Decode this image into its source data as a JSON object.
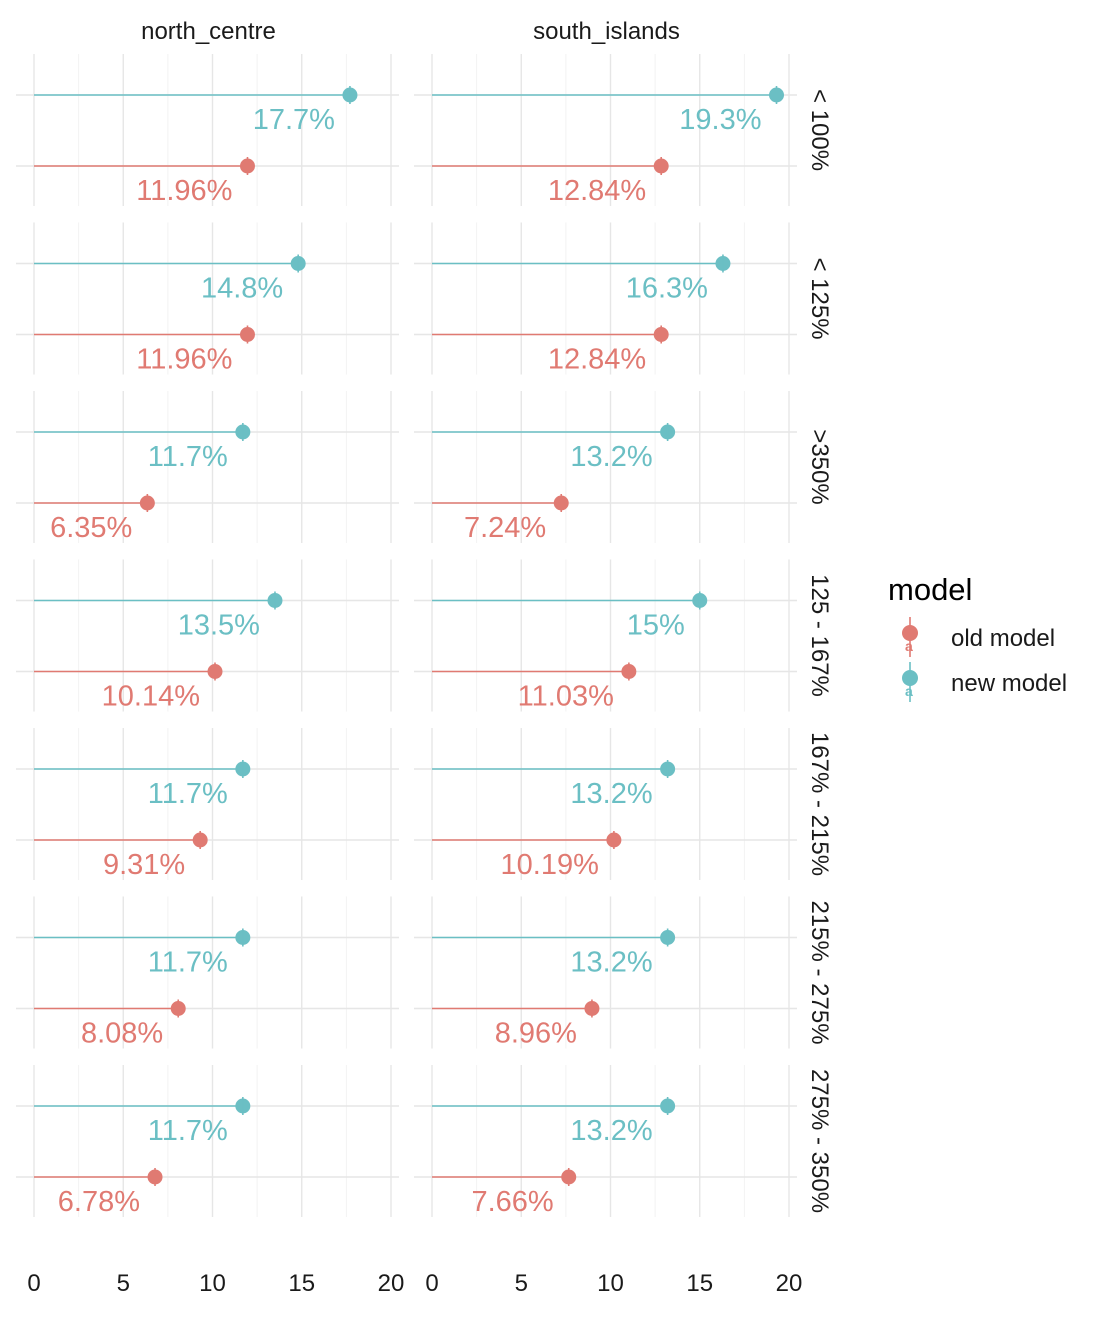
{
  "chart_data": {
    "type": "lollipop",
    "facet_columns": [
      "north_centre",
      "south_islands"
    ],
    "facet_rows": [
      "< 100%",
      "< 125%",
      ">350%",
      "125 - 167%",
      "167% - 215%",
      "215% - 275%",
      "275% - 350%"
    ],
    "xlim": [
      0,
      20
    ],
    "x_ticks": [
      "0",
      "5",
      "10",
      "15",
      "20"
    ],
    "grid": true,
    "legend": {
      "title": "model",
      "position": "right",
      "entries": [
        {
          "name": "old model",
          "color": "#E07A72"
        },
        {
          "name": "new model",
          "color": "#6BBFC4"
        }
      ]
    },
    "series": [
      {
        "name": "new model",
        "color": "#6BBFC4",
        "values": {
          "north_centre": [
            17.7,
            14.8,
            11.7,
            13.5,
            11.7,
            11.7,
            11.7
          ],
          "south_islands": [
            19.3,
            16.3,
            13.2,
            15,
            13.2,
            13.2,
            13.2
          ]
        },
        "labels": {
          "north_centre": [
            "17.7%",
            "14.8%",
            "11.7%",
            "13.5%",
            "11.7%",
            "11.7%",
            "11.7%"
          ],
          "south_islands": [
            "19.3%",
            "16.3%",
            "13.2%",
            "15%",
            "13.2%",
            "13.2%",
            "13.2%"
          ]
        }
      },
      {
        "name": "old model",
        "color": "#E07A72",
        "values": {
          "north_centre": [
            11.96,
            11.96,
            6.35,
            10.14,
            9.31,
            8.08,
            6.78
          ],
          "south_islands": [
            12.84,
            12.84,
            7.24,
            11.03,
            10.19,
            8.96,
            7.66
          ]
        },
        "labels": {
          "north_centre": [
            "11.96%",
            "11.96%",
            "6.35%",
            "10.14%",
            "9.31%",
            "8.08%",
            "6.78%"
          ],
          "south_islands": [
            "12.84%",
            "12.84%",
            "7.24%",
            "11.03%",
            "10.19%",
            "8.96%",
            "7.66%"
          ]
        }
      }
    ]
  }
}
